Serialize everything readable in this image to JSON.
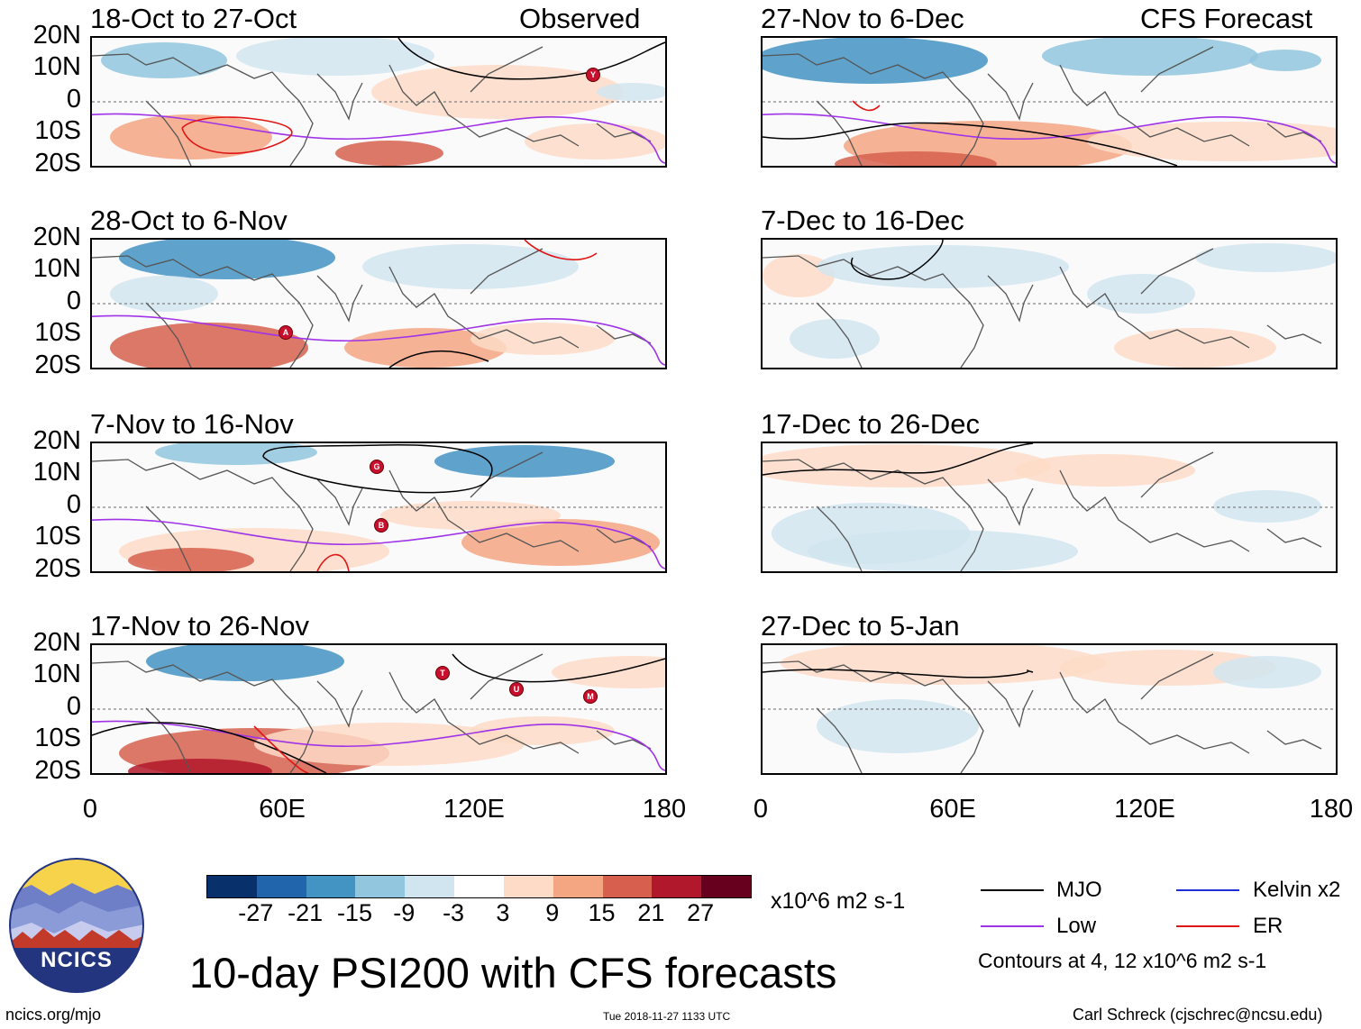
{
  "panels": [
    {
      "title": "18-Oct to 27-Oct",
      "tag": "Observed",
      "storms": [
        "Y"
      ]
    },
    {
      "title": "28-Oct to 6-Nov",
      "tag": "",
      "storms": [
        "A"
      ]
    },
    {
      "title": "7-Nov to 16-Nov",
      "tag": "",
      "storms": [
        "G",
        "B"
      ]
    },
    {
      "title": "17-Nov to 26-Nov",
      "tag": "",
      "storms": [
        "T",
        "U",
        "M"
      ]
    },
    {
      "title": "27-Nov to 6-Dec",
      "tag": "CFS Forecast",
      "storms": []
    },
    {
      "title": "7-Dec to 16-Dec",
      "tag": "",
      "storms": []
    },
    {
      "title": "17-Dec to 26-Dec",
      "tag": "",
      "storms": []
    },
    {
      "title": "27-Dec to 5-Jan",
      "tag": "",
      "storms": []
    }
  ],
  "axes": {
    "y_labels": [
      "20N",
      "10N",
      "0",
      "10S",
      "20S"
    ],
    "x_labels": [
      "0",
      "60E",
      "120E",
      "180"
    ]
  },
  "colorbar": {
    "colors": [
      "#08306b",
      "#2166ac",
      "#4393c3",
      "#92c5de",
      "#d1e5f0",
      "#ffffff",
      "#fddbc7",
      "#f4a582",
      "#d6604d",
      "#b2182b",
      "#67001f"
    ],
    "labels": [
      "-27",
      "-21",
      "-15",
      "-9",
      "-3",
      "3",
      "9",
      "15",
      "21",
      "27"
    ],
    "units": "x10^6 m2 s-1"
  },
  "legend": {
    "items": [
      {
        "label": "MJO",
        "color": "#000000"
      },
      {
        "label": "Kelvin x2",
        "color": "#1f2fd6"
      },
      {
        "label": "Low",
        "color": "#a033e8"
      },
      {
        "label": "ER",
        "color": "#e01515"
      }
    ],
    "contours_note": "Contours at 4, 12 x10^6 m2 s-1"
  },
  "logo": {
    "text": "NCICS"
  },
  "main_title": "10-day PSI200 with CFS forecasts",
  "footer": {
    "url": "ncics.org/mjo",
    "timestamp": "Tue 2018-11-27 1133 UTC",
    "credit": "Carl Schreck (cjschrec@ncsu.edu)"
  }
}
